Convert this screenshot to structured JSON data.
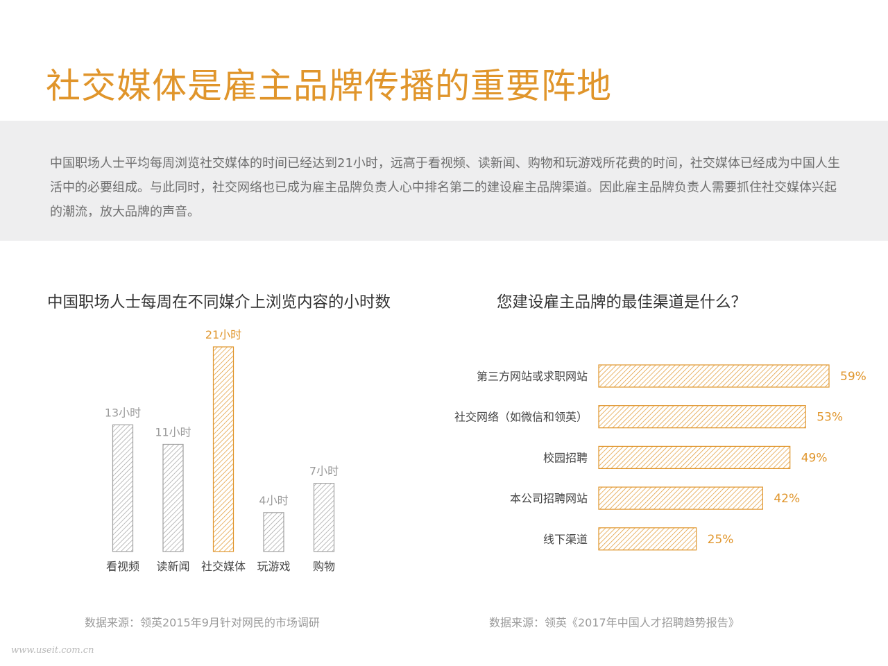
{
  "title": "社交媒体是雇主品牌传播的重要阵地",
  "intro": "中国职场人士平均每周浏览社交媒体的时间已经达到21小时，远高于看视频、读新闻、购物和玩游戏所花费的时间，社交媒体已经成为中国人生活中的必要组成。与此同时，社交网络也已成为雇主品牌负责人心中排名第二的建设雇主品牌渠道。因此雇主品牌负责人需要抓住社交媒体兴起的潮流，放大品牌的声音。",
  "colors": {
    "accent": "#e0952b",
    "gray_bar": "#a0a0a0",
    "gray_label": "#9a9a9a",
    "band": "#eeeeef"
  },
  "chart_data": [
    {
      "type": "bar",
      "title": "中国职场人士每周在不同媒介上浏览内容的小时数",
      "categories": [
        "看视频",
        "读新闻",
        "社交媒体",
        "玩游戏",
        "购物"
      ],
      "values": [
        13,
        11,
        21,
        4,
        7
      ],
      "data_labels": [
        "13小时",
        "11小时",
        "21小时",
        "4小时",
        "7小时"
      ],
      "highlight": "社交媒体",
      "ylim": [
        0,
        21
      ],
      "grid": false,
      "source": "数据来源：领英2015年9月针对网民的市场调研"
    },
    {
      "type": "bar",
      "orientation": "horizontal",
      "title": "您建设雇主品牌的最佳渠道是什么？",
      "categories": [
        "第三方网站或求职网站",
        "社交网络（如微信和领英）",
        "校园招聘",
        "本公司招聘网站",
        "线下渠道"
      ],
      "values": [
        59,
        53,
        49,
        42,
        25
      ],
      "data_labels": [
        "59%",
        "53%",
        "49%",
        "42%",
        "25%"
      ],
      "xlim": [
        0,
        59
      ],
      "grid": false,
      "source": "数据来源：领英《2017年中国人才招聘趋势报告》"
    }
  ],
  "watermark": "www.useit.com.cn"
}
